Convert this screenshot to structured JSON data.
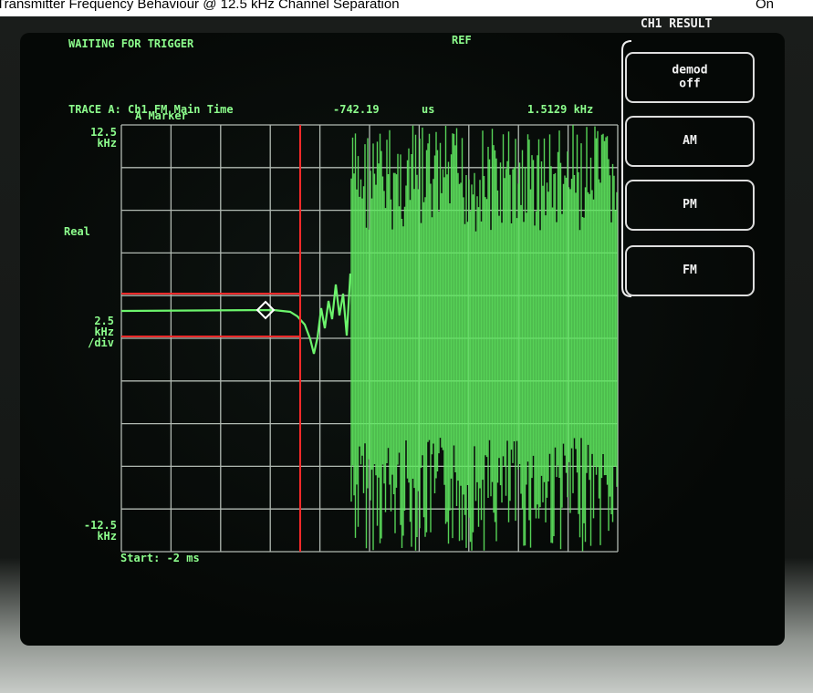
{
  "caption": {
    "title": "Transmitter Frequency Behaviour @ 12.5 kHz Channel Separation",
    "status": "On"
  },
  "screen": {
    "status": "WAITING FOR TRIGGER",
    "ref": "REF",
    "trace_label": "TRACE A: Ch1 FM Main Time",
    "marker_label": "A Marker",
    "marker_time": "-742.19",
    "marker_time_unit": "us",
    "marker_value": "1.5129 kHz",
    "y_top": "12.5",
    "y_top_unit": "kHz",
    "y_mode": "Real",
    "scale": "2.5",
    "scale_unit": "kHz",
    "scale_per": "/div",
    "y_bottom": "-12.5",
    "y_bottom_unit": "kHz",
    "start": "Start: -2 ms"
  },
  "softkeys": {
    "title": "CH1 RESULT",
    "keys": [
      {
        "lines": [
          "demod",
          "off"
        ]
      },
      {
        "lines": [
          "AM"
        ]
      },
      {
        "lines": [
          "PM"
        ]
      },
      {
        "lines": [
          "FM"
        ]
      }
    ]
  }
}
